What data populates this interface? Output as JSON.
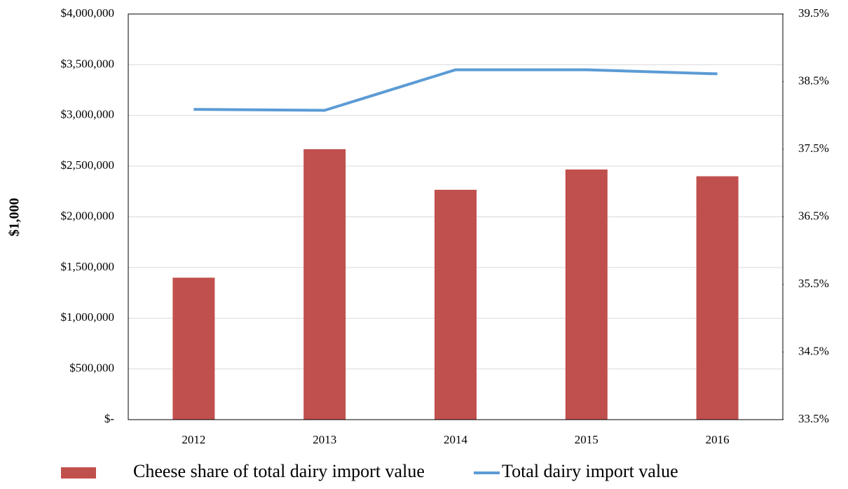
{
  "chart_data": {
    "type": "bar",
    "y_label": "$1,000",
    "categories": [
      "2012",
      "2013",
      "2014",
      "2015",
      "2016"
    ],
    "series": [
      {
        "name": "Cheese share of total dairy import value",
        "type": "bar",
        "axis": "y2",
        "color": "#c0504d",
        "values": [
          35.6,
          37.5,
          36.9,
          37.2,
          37.1
        ]
      },
      {
        "name": "Total dairy import value",
        "type": "line",
        "axis": "y",
        "color": "#5b9bd5",
        "values": [
          3060000,
          3050000,
          3450000,
          3450000,
          3410000
        ]
      }
    ],
    "ylim": [
      0,
      4000000
    ],
    "yticks": [
      {
        "value": 0,
        "label": "$-"
      },
      {
        "value": 500000,
        "label": "$500,000"
      },
      {
        "value": 1000000,
        "label": "$1,000,000"
      },
      {
        "value": 1500000,
        "label": "$1,500,000"
      },
      {
        "value": 2000000,
        "label": "$2,000,000"
      },
      {
        "value": 2500000,
        "label": "$2,500,000"
      },
      {
        "value": 3000000,
        "label": "$3,000,000"
      },
      {
        "value": 3500000,
        "label": "$3,500,000"
      },
      {
        "value": 4000000,
        "label": "$4,000,000"
      }
    ],
    "y2lim": [
      33.5,
      39.5
    ],
    "y2ticks": [
      {
        "value": 33.5,
        "label": "33.5%"
      },
      {
        "value": 34.5,
        "label": "34.5%"
      },
      {
        "value": 35.5,
        "label": "35.5%"
      },
      {
        "value": 36.5,
        "label": "36.5%"
      },
      {
        "value": 37.5,
        "label": "37.5%"
      },
      {
        "value": 38.5,
        "label": "38.5%"
      },
      {
        "value": 39.5,
        "label": "39.5%"
      }
    ],
    "grid": true,
    "legend": "bottom"
  }
}
